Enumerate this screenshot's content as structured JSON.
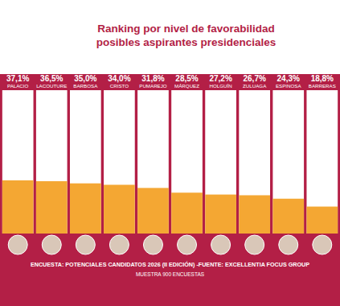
{
  "chart_data": {
    "type": "bar",
    "title": "Ranking por nivel de favorabilidad posibles aspirantes presidenciales",
    "categories": [
      "PALACIO",
      "LACOUTURE",
      "BARBOSA",
      "CRISTO",
      "PUMAREJO",
      "MÁRQUEZ",
      "HOLGUÍN",
      "ZULUAGA",
      "ESPINOSA",
      "BARRERAS"
    ],
    "values": [
      37.1,
      36.5,
      35.0,
      34.0,
      31.8,
      28.5,
      27.2,
      26.7,
      24.3,
      18.8
    ],
    "value_labels": [
      "37,1%",
      "36,5%",
      "35,0%",
      "34,0%",
      "31,8%",
      "28,5%",
      "27,2%",
      "26,7%",
      "24,3%",
      "18,8%"
    ],
    "color": "#f4a733",
    "ylim": [
      0,
      100
    ],
    "data_labels": true,
    "tick_labels": false,
    "annotations": [
      "ENCUESTA: POTENCIALES CANDIDATOS 2026 (II EDICIÓN) -FUENTE: EXCELLENTIA FOCUS GROUP",
      "MUESTRA 900 ENCUESTAS"
    ]
  }
}
